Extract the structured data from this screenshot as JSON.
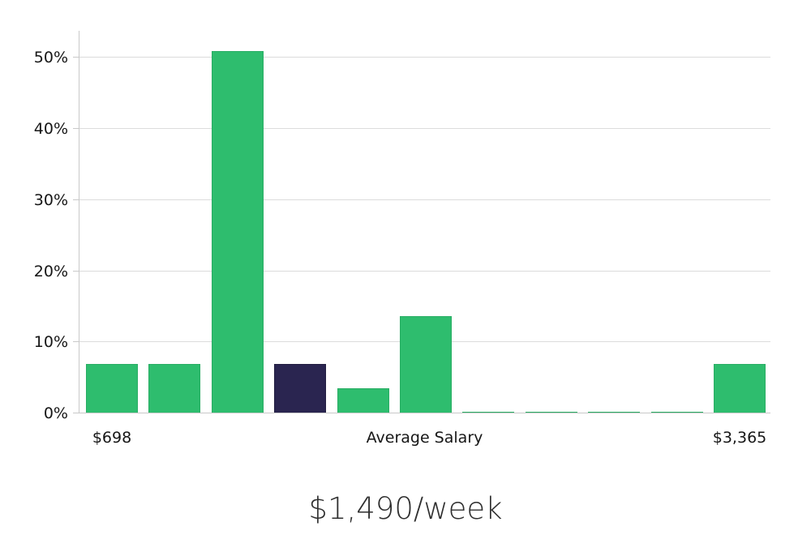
{
  "caption": {
    "text": "$1,490/week"
  },
  "chart_data": {
    "type": "bar",
    "title": "",
    "xlabel": "",
    "ylabel": "",
    "grid": true,
    "legend": "none",
    "ylim": [
      0,
      53.8
    ],
    "y_ticks": [
      {
        "value": 0,
        "label": "0%"
      },
      {
        "value": 10,
        "label": "10%"
      },
      {
        "value": 20,
        "label": "20%"
      },
      {
        "value": 30,
        "label": "30%"
      },
      {
        "value": 40,
        "label": "40%"
      },
      {
        "value": 50,
        "label": "50%"
      }
    ],
    "x_axis_labels": [
      {
        "text": "$698",
        "anchor": "bar-0"
      },
      {
        "text": "Average Salary",
        "anchor": "center"
      },
      {
        "text": "$3,365",
        "anchor": "bar-10"
      }
    ],
    "bars": [
      {
        "value": 7,
        "color": "green"
      },
      {
        "value": 7,
        "color": "green"
      },
      {
        "value": 51,
        "color": "green"
      },
      {
        "value": 7,
        "color": "dark",
        "highlight": true
      },
      {
        "value": 3.5,
        "color": "green"
      },
      {
        "value": 13.7,
        "color": "green"
      },
      {
        "value": 0.25,
        "color": "green"
      },
      {
        "value": 0.25,
        "color": "green"
      },
      {
        "value": 0.25,
        "color": "green"
      },
      {
        "value": 0.25,
        "color": "green"
      },
      {
        "value": 7,
        "color": "green"
      }
    ],
    "colors": {
      "green": "#2ebd6e",
      "green_edge": "#29ad64",
      "dark": "#2a2550",
      "dark_edge": "#211d40",
      "grid": "#dcdcdc",
      "axis": "#c9c9c9",
      "tick_text": "#161616",
      "caption_text": "#2e2e2e"
    }
  }
}
